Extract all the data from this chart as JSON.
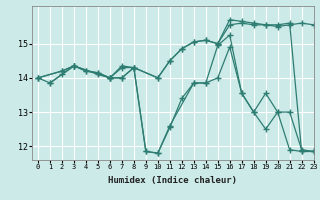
{
  "xlabel": "Humidex (Indice chaleur)",
  "xlim": [
    -0.5,
    23
  ],
  "ylim": [
    11.6,
    16.1
  ],
  "yticks": [
    12,
    13,
    14,
    15
  ],
  "xticks": [
    0,
    1,
    2,
    3,
    4,
    5,
    6,
    7,
    8,
    9,
    10,
    11,
    12,
    13,
    14,
    15,
    16,
    17,
    18,
    19,
    20,
    21,
    22,
    23
  ],
  "bg_color": "#cceae8",
  "grid_color": "#ffffff",
  "line_color": "#2e7d72",
  "lines": [
    {
      "x": [
        0,
        2,
        3,
        4,
        5,
        6,
        7,
        8,
        10,
        11,
        12,
        13,
        14,
        15,
        16,
        17,
        18,
        19,
        20,
        21,
        22,
        23
      ],
      "y": [
        14.0,
        14.2,
        14.35,
        14.2,
        14.15,
        14.0,
        14.3,
        14.3,
        14.0,
        14.5,
        14.85,
        15.05,
        15.1,
        15.0,
        15.7,
        15.65,
        15.6,
        15.55,
        15.55,
        15.6,
        11.85,
        11.85
      ]
    },
    {
      "x": [
        0,
        2,
        3,
        5,
        6,
        7,
        8,
        10,
        11,
        12,
        13,
        14,
        15,
        16,
        17,
        18,
        19,
        20,
        21,
        22,
        23
      ],
      "y": [
        14.0,
        14.2,
        14.35,
        14.1,
        14.0,
        14.0,
        14.3,
        14.0,
        14.5,
        14.85,
        15.05,
        15.1,
        15.0,
        15.55,
        15.6,
        15.55,
        15.55,
        15.5,
        15.55,
        15.6,
        15.55
      ]
    },
    {
      "x": [
        1,
        2,
        3,
        4,
        5,
        6,
        7,
        8,
        9,
        10,
        11,
        12,
        13,
        14,
        15,
        16,
        17,
        18,
        19,
        20,
        21,
        22,
        23
      ],
      "y": [
        13.85,
        14.1,
        14.35,
        14.2,
        14.15,
        14.0,
        14.0,
        14.3,
        11.85,
        11.8,
        12.55,
        13.4,
        13.85,
        13.85,
        14.0,
        14.9,
        13.55,
        13.0,
        12.5,
        13.0,
        13.0,
        11.9,
        11.85
      ]
    },
    {
      "x": [
        0,
        1,
        3,
        6,
        7,
        8,
        9,
        10,
        11,
        13,
        14,
        15,
        16,
        17,
        18,
        19,
        20,
        21,
        22,
        23
      ],
      "y": [
        14.0,
        13.85,
        14.35,
        14.0,
        14.35,
        14.3,
        11.85,
        11.8,
        12.6,
        13.85,
        13.85,
        14.95,
        15.25,
        13.55,
        13.0,
        13.55,
        13.0,
        11.9,
        11.85,
        11.85
      ]
    }
  ],
  "marker": "+",
  "markersize": 4,
  "linewidth": 0.9
}
